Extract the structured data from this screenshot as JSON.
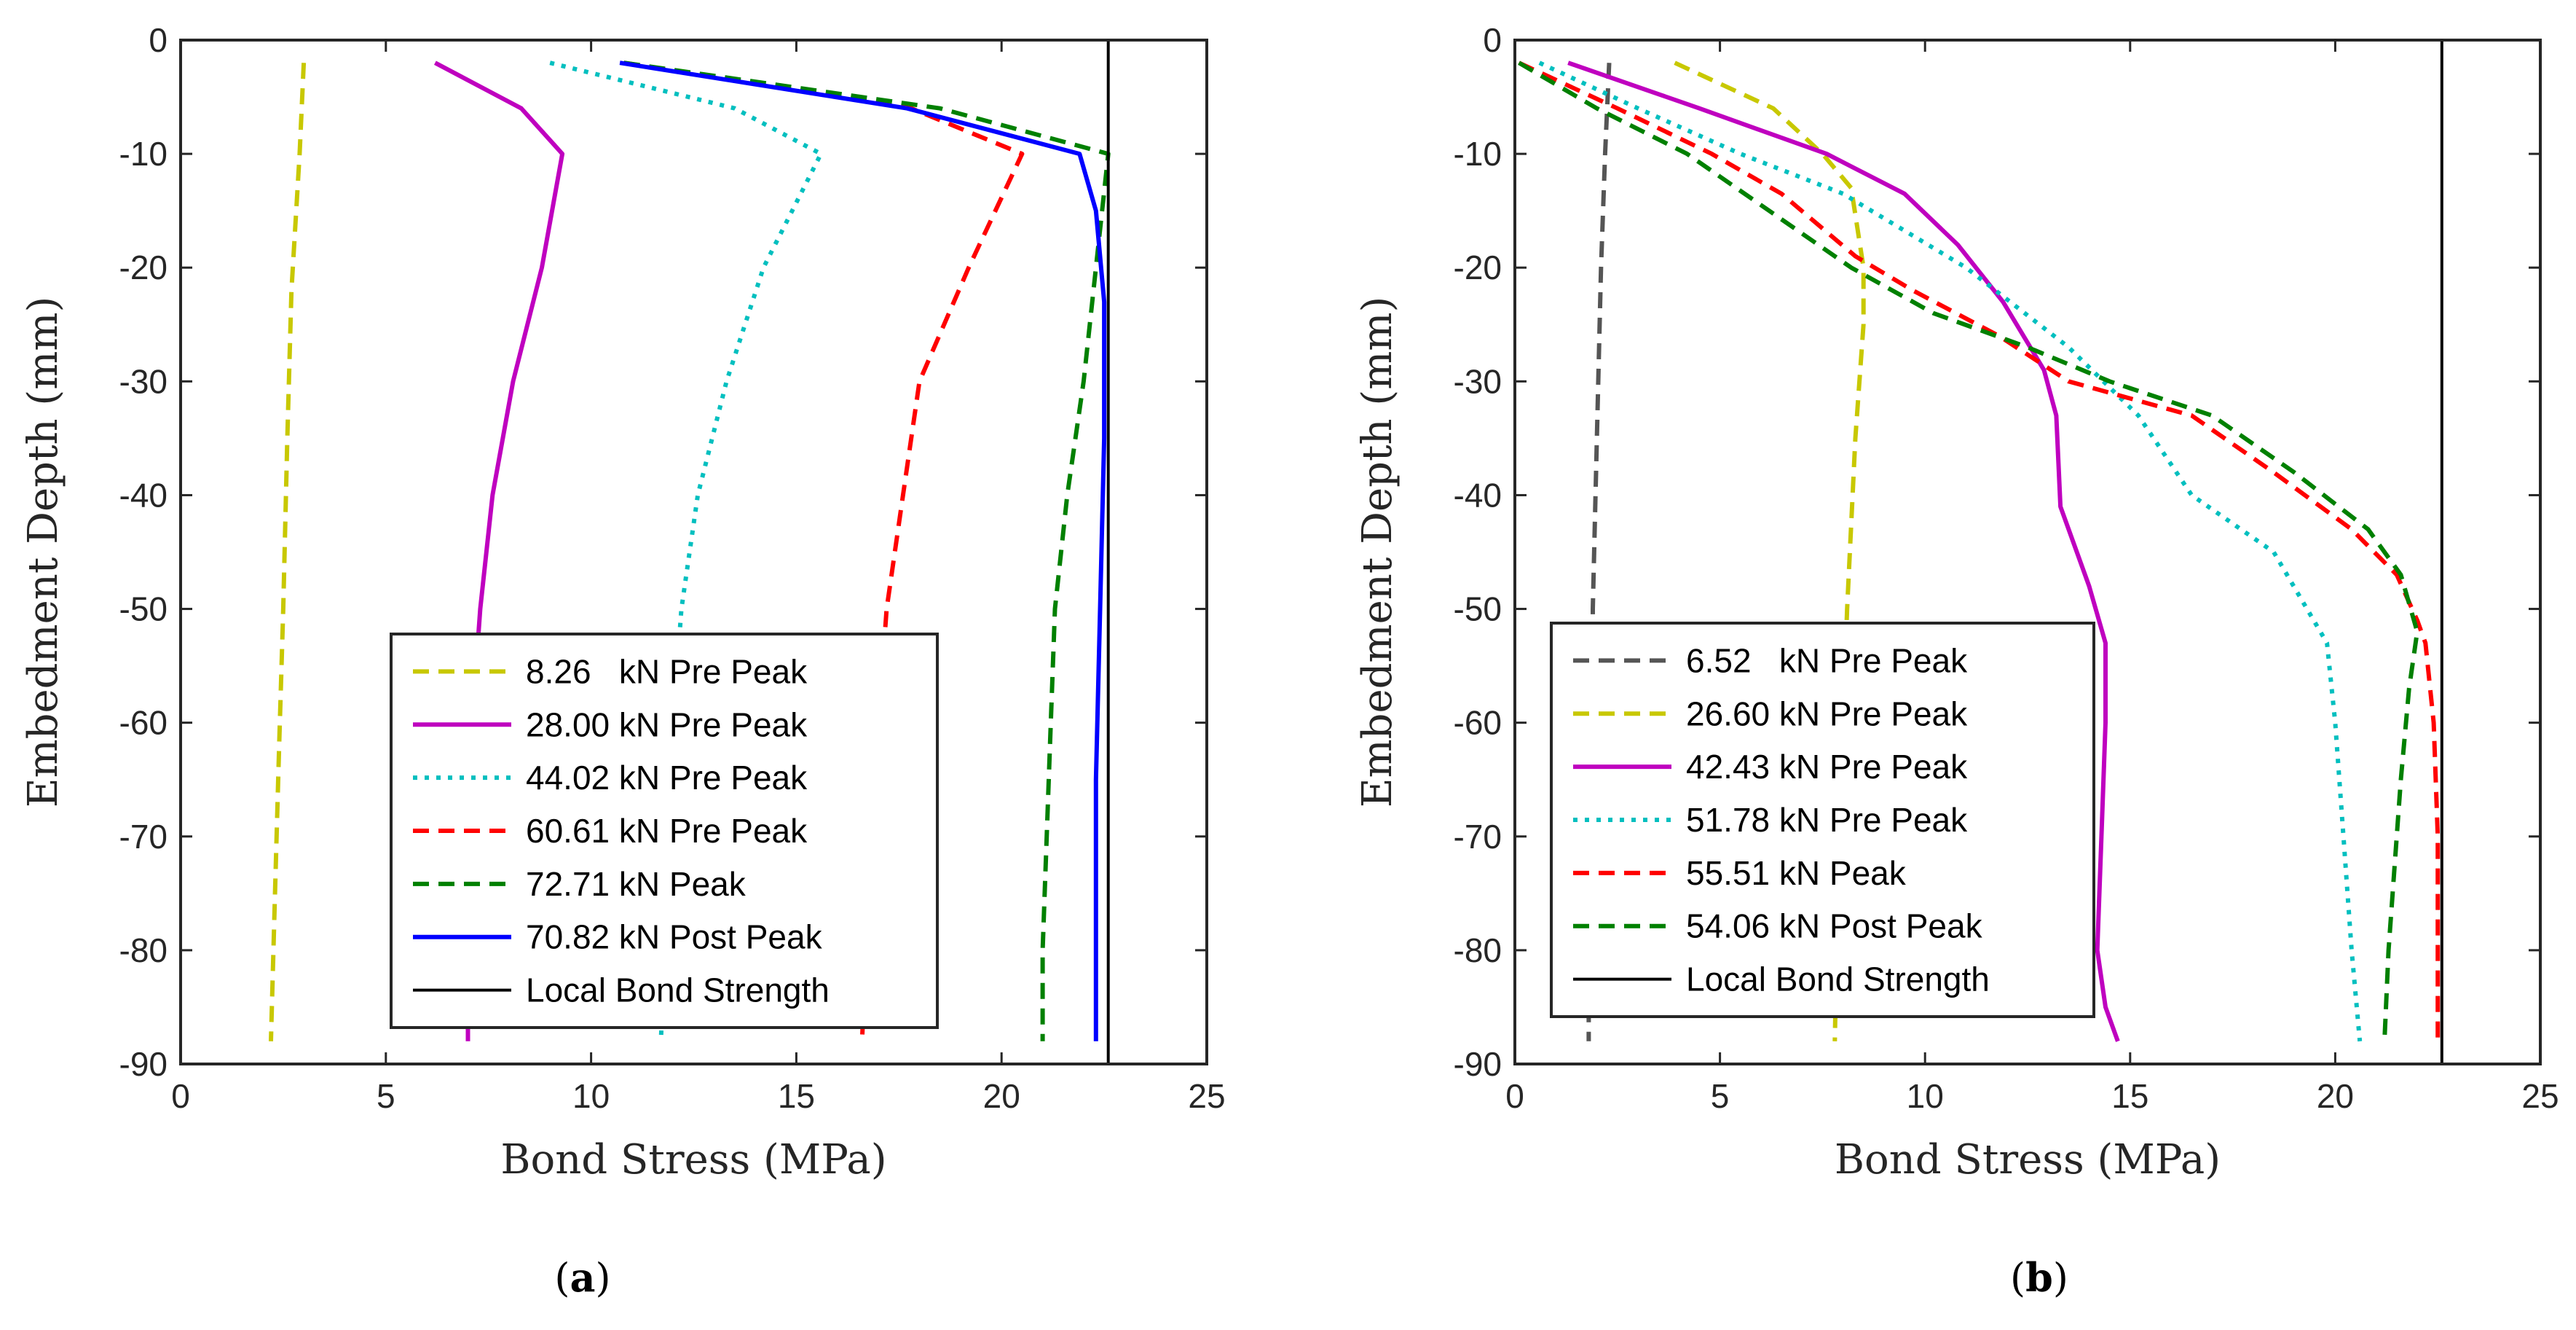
{
  "chart_data": [
    {
      "type": "line",
      "panel_label": "(a)",
      "xlabel": "Bond Stress (MPa)",
      "ylabel": "Embedment Depth (mm)",
      "xlim": [
        0,
        25
      ],
      "ylim": [
        -90,
        0
      ],
      "xticks": [
        "0",
        "5",
        "10",
        "15",
        "20",
        "25"
      ],
      "yticks": [
        "0",
        "-10",
        "-20",
        "-30",
        "-40",
        "-50",
        "-60",
        "-70",
        "-80",
        "-90"
      ],
      "legend_position": "bottom-right",
      "series": [
        {
          "name": "8.26   kN Pre Peak",
          "color": "#c8c800",
          "style": "dashed",
          "points": [
            [
              3.0,
              -2
            ],
            [
              2.9,
              -10
            ],
            [
              2.7,
              -22
            ],
            [
              2.6,
              -35
            ],
            [
              2.5,
              -50
            ],
            [
              2.4,
              -62
            ],
            [
              2.3,
              -75
            ],
            [
              2.2,
              -88
            ]
          ]
        },
        {
          "name": "28.00 kN Pre Peak",
          "color": "#bf00bf",
          "style": "solid",
          "points": [
            [
              6.2,
              -2
            ],
            [
              8.3,
              -6
            ],
            [
              9.3,
              -10
            ],
            [
              8.8,
              -20
            ],
            [
              8.1,
              -30
            ],
            [
              7.6,
              -40
            ],
            [
              7.3,
              -50
            ],
            [
              7.1,
              -60
            ],
            [
              7.0,
              -70
            ],
            [
              7.0,
              -80
            ],
            [
              7.0,
              -88
            ]
          ]
        },
        {
          "name": "44.02 kN Pre Peak",
          "color": "#00bfbf",
          "style": "dotted",
          "points": [
            [
              9.0,
              -2
            ],
            [
              13.5,
              -6
            ],
            [
              15.6,
              -10
            ],
            [
              14.2,
              -20
            ],
            [
              13.3,
              -30
            ],
            [
              12.6,
              -40
            ],
            [
              12.2,
              -50
            ],
            [
              12.0,
              -60
            ],
            [
              11.9,
              -70
            ],
            [
              11.8,
              -80
            ],
            [
              11.7,
              -88
            ]
          ]
        },
        {
          "name": "60.61 kN Pre Peak",
          "color": "#ff0000",
          "style": "dashed",
          "points": [
            [
              10.8,
              -2
            ],
            [
              17.8,
              -6
            ],
            [
              20.5,
              -10
            ],
            [
              19.2,
              -20
            ],
            [
              18.0,
              -30
            ],
            [
              17.6,
              -40
            ],
            [
              17.2,
              -50
            ],
            [
              17.0,
              -60
            ],
            [
              16.8,
              -70
            ],
            [
              16.7,
              -80
            ],
            [
              16.6,
              -88
            ]
          ]
        },
        {
          "name": "72.71 kN Peak",
          "color": "#008000",
          "style": "dashed",
          "points": [
            [
              10.8,
              -2
            ],
            [
              18.5,
              -6
            ],
            [
              22.6,
              -10
            ],
            [
              22.3,
              -20
            ],
            [
              22.0,
              -30
            ],
            [
              21.6,
              -40
            ],
            [
              21.3,
              -50
            ],
            [
              21.2,
              -60
            ],
            [
              21.1,
              -70
            ],
            [
              21.0,
              -80
            ],
            [
              21.0,
              -88
            ]
          ]
        },
        {
          "name": "70.82 kN Post Peak",
          "color": "#0000ff",
          "style": "solid",
          "points": [
            [
              10.7,
              -2
            ],
            [
              17.7,
              -6
            ],
            [
              21.9,
              -10
            ],
            [
              22.3,
              -15
            ],
            [
              22.5,
              -23
            ],
            [
              22.5,
              -35
            ],
            [
              22.4,
              -50
            ],
            [
              22.3,
              -65
            ],
            [
              22.3,
              -80
            ],
            [
              22.3,
              -88
            ]
          ]
        },
        {
          "name": "Local Bond Strength",
          "color": "#000000",
          "style": "solid",
          "points": [
            [
              22.6,
              0
            ],
            [
              22.6,
              -90
            ]
          ]
        }
      ]
    },
    {
      "type": "line",
      "panel_label": "(b)",
      "xlabel": "Bond Stress (MPa)",
      "ylabel": "Embedment Depth (mm)",
      "xlim": [
        0,
        25
      ],
      "ylim": [
        -90,
        0
      ],
      "xticks": [
        "0",
        "5",
        "10",
        "15",
        "20",
        "25"
      ],
      "yticks": [
        "0",
        "-10",
        "-20",
        "-30",
        "-40",
        "-50",
        "-60",
        "-70",
        "-80",
        "-90"
      ],
      "legend_position": "bottom-left",
      "series": [
        {
          "name": "6.52   kN Pre Peak",
          "color": "#555555",
          "style": "dashed",
          "points": [
            [
              2.3,
              -2
            ],
            [
              2.2,
              -10
            ],
            [
              2.1,
              -20
            ],
            [
              2.0,
              -35
            ],
            [
              1.9,
              -50
            ],
            [
              1.9,
              -65
            ],
            [
              1.8,
              -80
            ],
            [
              1.8,
              -88
            ]
          ]
        },
        {
          "name": "26.60 kN Pre Peak",
          "color": "#c8c800",
          "style": "dashed",
          "points": [
            [
              3.9,
              -2
            ],
            [
              6.3,
              -6
            ],
            [
              7.5,
              -10
            ],
            [
              8.2,
              -13
            ],
            [
              8.5,
              -20
            ],
            [
              8.5,
              -25
            ],
            [
              8.3,
              -35
            ],
            [
              8.1,
              -50
            ],
            [
              8.0,
              -60
            ],
            [
              7.9,
              -70
            ],
            [
              7.8,
              -88
            ]
          ]
        },
        {
          "name": "42.43 kN Pre Peak",
          "color": "#bf00bf",
          "style": "solid",
          "points": [
            [
              1.3,
              -2
            ],
            [
              4.5,
              -6
            ],
            [
              7.6,
              -10
            ],
            [
              9.5,
              -13.5
            ],
            [
              10.8,
              -18
            ],
            [
              11.9,
              -23
            ],
            [
              12.9,
              -29
            ],
            [
              13.2,
              -33
            ],
            [
              13.3,
              -41
            ],
            [
              14.0,
              -48
            ],
            [
              14.4,
              -53
            ],
            [
              14.4,
              -60
            ],
            [
              14.3,
              -70
            ],
            [
              14.2,
              -80
            ],
            [
              14.4,
              -85
            ],
            [
              14.7,
              -88
            ]
          ]
        },
        {
          "name": "51.78 kN Pre Peak",
          "color": "#00bfbf",
          "style": "dotted",
          "points": [
            [
              0.6,
              -2
            ],
            [
              3.0,
              -6
            ],
            [
              5.5,
              -10
            ],
            [
              8.0,
              -13.5
            ],
            [
              11.0,
              -20
            ],
            [
              13.5,
              -27
            ],
            [
              15.2,
              -33
            ],
            [
              16.5,
              -40
            ],
            [
              18.5,
              -45
            ],
            [
              19.8,
              -53
            ],
            [
              20.0,
              -60
            ],
            [
              20.2,
              -70
            ],
            [
              20.4,
              -80
            ],
            [
              20.6,
              -88
            ]
          ]
        },
        {
          "name": "55.51 kN Peak",
          "color": "#ff0000",
          "style": "dashed",
          "points": [
            [
              0.1,
              -2
            ],
            [
              2.5,
              -6
            ],
            [
              4.8,
              -10
            ],
            [
              6.5,
              -13.5
            ],
            [
              8.3,
              -19
            ],
            [
              9.7,
              -22
            ],
            [
              11.8,
              -26
            ],
            [
              13.5,
              -30
            ],
            [
              16.5,
              -33
            ],
            [
              18.5,
              -38
            ],
            [
              20.4,
              -43
            ],
            [
              21.5,
              -47
            ],
            [
              22.0,
              -51
            ],
            [
              22.2,
              -53
            ],
            [
              22.4,
              -60
            ],
            [
              22.5,
              -70
            ],
            [
              22.5,
              -80
            ],
            [
              22.5,
              -88
            ]
          ]
        },
        {
          "name": "54.06 kN Post Peak",
          "color": "#008000",
          "style": "dashed",
          "points": [
            [
              0.1,
              -2
            ],
            [
              2.0,
              -6
            ],
            [
              4.2,
              -10
            ],
            [
              6.2,
              -15
            ],
            [
              8.2,
              -20
            ],
            [
              10.2,
              -24
            ],
            [
              12.5,
              -27
            ],
            [
              14.5,
              -30
            ],
            [
              17.0,
              -33
            ],
            [
              19.0,
              -38
            ],
            [
              20.8,
              -43
            ],
            [
              21.6,
              -47
            ],
            [
              22.0,
              -52
            ],
            [
              21.8,
              -57
            ],
            [
              21.6,
              -65
            ],
            [
              21.3,
              -80
            ],
            [
              21.2,
              -88
            ]
          ]
        },
        {
          "name": "Local Bond Strength",
          "color": "#000000",
          "style": "solid",
          "points": [
            [
              22.6,
              0
            ],
            [
              22.6,
              -90
            ]
          ]
        }
      ]
    }
  ]
}
